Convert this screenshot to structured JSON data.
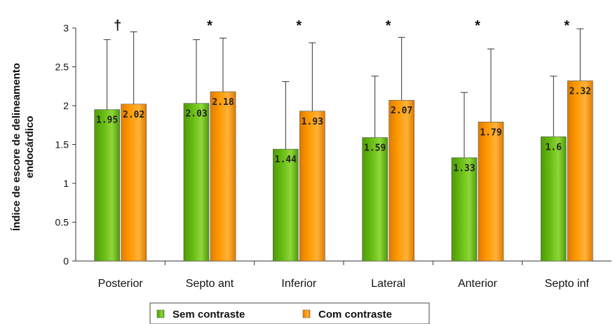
{
  "chart_data": {
    "type": "bar",
    "ylabel_lines": [
      "Índice de escore de delineamento",
      "endocárdico"
    ],
    "ylim": [
      0,
      3
    ],
    "yticks": [
      "0",
      "0.5",
      "1",
      "1.5",
      "2",
      "2.5",
      "3"
    ],
    "ytick_values": [
      0,
      0.5,
      1,
      1.5,
      2,
      2.5,
      3
    ],
    "categories": [
      "Posterior",
      "Septo ant",
      "Inferior",
      "Lateral",
      "Anterior",
      "Septo inf"
    ],
    "significance": [
      "†",
      "*",
      "*",
      "*",
      "*",
      "*"
    ],
    "series": [
      {
        "name": "Sem contraste",
        "color": "#66bb11",
        "values": [
          1.95,
          2.03,
          1.44,
          1.59,
          1.33,
          1.6
        ],
        "labels": [
          "1.95",
          "2.03",
          "1.44",
          "1.59",
          "1.33",
          "1.6"
        ],
        "error_upper": [
          2.85,
          2.85,
          2.31,
          2.38,
          2.17,
          2.38
        ]
      },
      {
        "name": "Com contraste",
        "color": "#ff9900",
        "values": [
          2.02,
          2.18,
          1.93,
          2.07,
          1.79,
          2.32
        ],
        "labels": [
          "2.02",
          "2.18",
          "1.93",
          "2.07",
          "1.79",
          "2.32"
        ],
        "error_upper": [
          2.95,
          2.87,
          2.81,
          2.88,
          2.73,
          2.99
        ]
      }
    ],
    "grid": false,
    "legend_position": "bottom"
  }
}
